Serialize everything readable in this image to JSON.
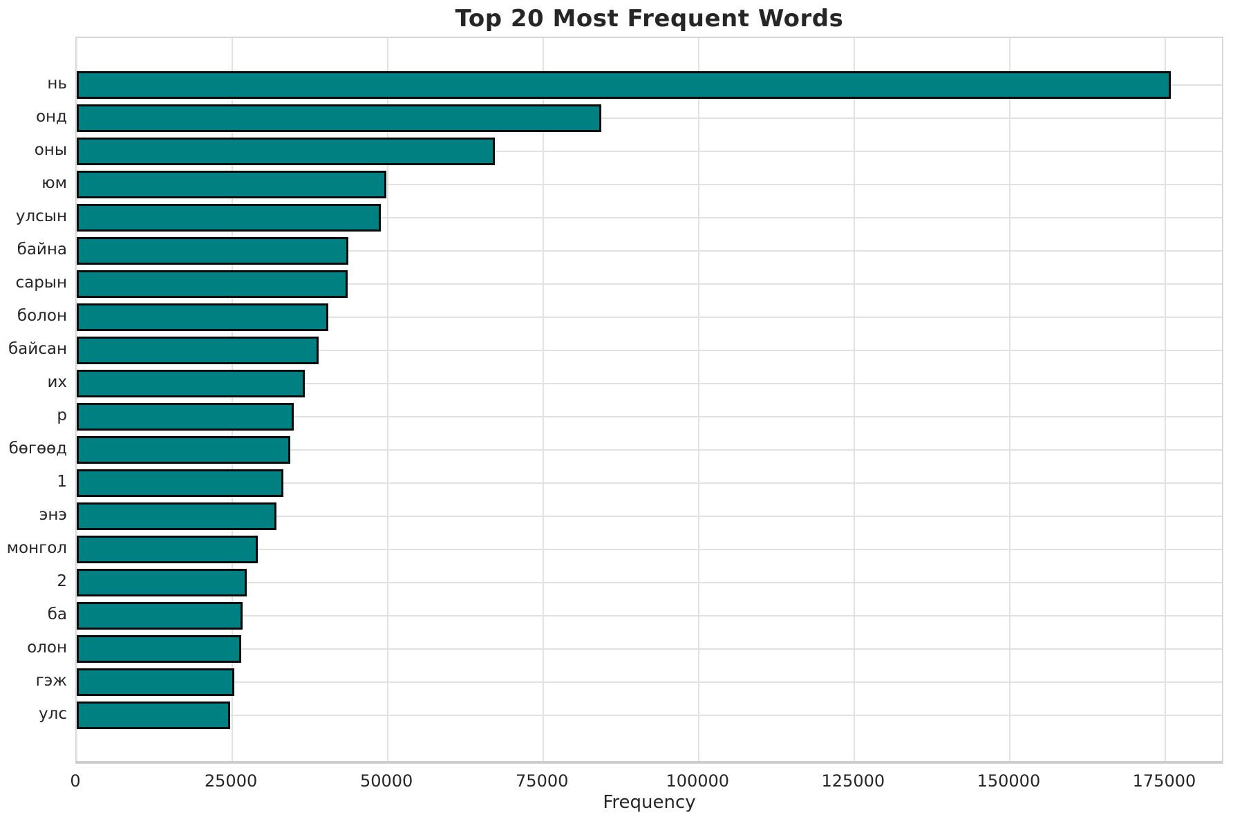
{
  "chart_data": {
    "type": "bar",
    "orientation": "horizontal",
    "title": "Top 20 Most Frequent Words",
    "xlabel": "Frequency",
    "ylabel": "",
    "categories": [
      "нь",
      "онд",
      "оны",
      "юм",
      "улсын",
      "байна",
      "сарын",
      "болон",
      "байсан",
      "их",
      "р",
      "бөгөөд",
      "1",
      "энэ",
      "монгол",
      "2",
      "ба",
      "олон",
      "гэж",
      "улс"
    ],
    "values": [
      175800,
      84300,
      67200,
      49800,
      48900,
      43700,
      43500,
      40400,
      38900,
      36600,
      34900,
      34300,
      33200,
      32100,
      29100,
      27300,
      26700,
      26400,
      25300,
      24600
    ],
    "xticks": [
      0,
      25000,
      50000,
      75000,
      100000,
      125000,
      150000,
      175000
    ],
    "xlim": [
      0,
      184500
    ],
    "grid": true,
    "legend": false,
    "bar_color": "#008080",
    "bar_edge_color": "#0b0b0b",
    "grid_color": "#e2e2e2",
    "text_color": "#262626",
    "background_color": "#ffffff"
  }
}
